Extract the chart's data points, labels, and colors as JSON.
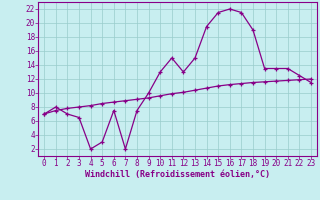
{
  "xlabel": "Windchill (Refroidissement éolien,°C)",
  "line1_x": [
    0,
    1,
    2,
    3,
    4,
    5,
    6,
    7,
    8,
    9,
    10,
    11,
    12,
    13,
    14,
    15,
    16,
    17,
    18,
    19,
    20,
    21,
    22,
    23
  ],
  "line1_y": [
    7.0,
    8.0,
    7.0,
    6.5,
    2.0,
    3.0,
    7.5,
    2.0,
    7.5,
    10.0,
    13.0,
    15.0,
    13.0,
    15.0,
    19.5,
    21.5,
    22.0,
    21.5,
    19.0,
    13.5,
    13.5,
    13.5,
    12.5,
    11.5
  ],
  "line2_x": [
    0,
    1,
    2,
    3,
    4,
    5,
    6,
    7,
    8,
    9,
    10,
    11,
    12,
    13,
    14,
    15,
    16,
    17,
    18,
    19,
    20,
    21,
    22,
    23
  ],
  "line2_y": [
    7.0,
    7.5,
    7.8,
    8.0,
    8.2,
    8.5,
    8.7,
    8.9,
    9.1,
    9.3,
    9.6,
    9.9,
    10.1,
    10.4,
    10.7,
    11.0,
    11.2,
    11.35,
    11.5,
    11.6,
    11.7,
    11.8,
    11.9,
    12.0
  ],
  "line_color": "#880088",
  "bg_color": "#c8eef0",
  "grid_color": "#99cccc",
  "ylim": [
    1,
    23
  ],
  "xlim": [
    -0.5,
    23.5
  ],
  "yticks": [
    2,
    4,
    6,
    8,
    10,
    12,
    14,
    16,
    18,
    20,
    22
  ],
  "xticks": [
    0,
    1,
    2,
    3,
    4,
    5,
    6,
    7,
    8,
    9,
    10,
    11,
    12,
    13,
    14,
    15,
    16,
    17,
    18,
    19,
    20,
    21,
    22,
    23
  ],
  "tick_fontsize": 5.5,
  "xlabel_fontsize": 6.0
}
